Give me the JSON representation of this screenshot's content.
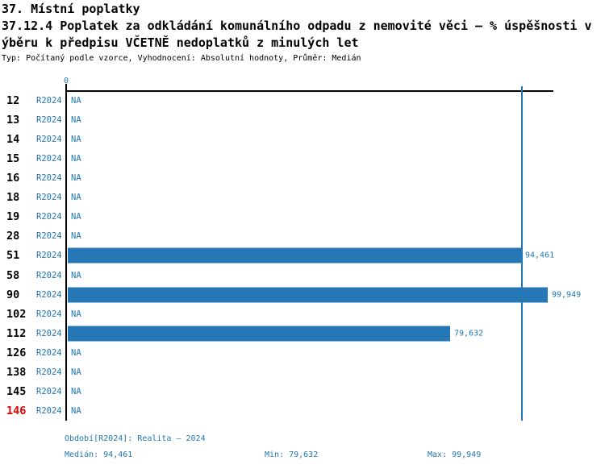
{
  "header": {
    "section_title": "37. Místní poplatky",
    "indicator_title_line1": "37.12.4 Poplatek za odkládání komunálního odpadu z nemovité věci – % úspěšnosti v",
    "indicator_title_line2": "ýběru k předpisu VČETNĚ nedoplatků z minulých let",
    "meta_line": "Typ: Počítaný podle vzorce, Vyhodnocení: Absolutní hodnoty, Průměr: Medián"
  },
  "chart_data": {
    "type": "bar",
    "orientation": "horizontal",
    "x_axis": {
      "zero_label": "0",
      "min": 0,
      "implied_max": 100
    },
    "median_line_value": 94.461,
    "na_label": "NA",
    "bar_color": "#2577b5",
    "text_color": "#1f77b4",
    "highlight_color": "#dd0000",
    "categories": [
      "12",
      "13",
      "14",
      "15",
      "16",
      "18",
      "19",
      "28",
      "51",
      "58",
      "90",
      "102",
      "112",
      "126",
      "138",
      "145",
      "146"
    ],
    "series": [
      {
        "name": "R2024",
        "values": [
          null,
          null,
          null,
          null,
          null,
          null,
          null,
          null,
          94.461,
          null,
          99.949,
          null,
          79.632,
          null,
          null,
          null,
          null
        ],
        "display_values": [
          "NA",
          "NA",
          "NA",
          "NA",
          "NA",
          "NA",
          "NA",
          "NA",
          "94,461",
          "NA",
          "99,949",
          "NA",
          "79,632",
          "NA",
          "NA",
          "NA",
          "NA"
        ]
      }
    ],
    "rows": [
      {
        "category": "12",
        "period": "R2024",
        "value": null,
        "display": "NA",
        "highlight": false
      },
      {
        "category": "13",
        "period": "R2024",
        "value": null,
        "display": "NA",
        "highlight": false
      },
      {
        "category": "14",
        "period": "R2024",
        "value": null,
        "display": "NA",
        "highlight": false
      },
      {
        "category": "15",
        "period": "R2024",
        "value": null,
        "display": "NA",
        "highlight": false
      },
      {
        "category": "16",
        "period": "R2024",
        "value": null,
        "display": "NA",
        "highlight": false
      },
      {
        "category": "18",
        "period": "R2024",
        "value": null,
        "display": "NA",
        "highlight": false
      },
      {
        "category": "19",
        "period": "R2024",
        "value": null,
        "display": "NA",
        "highlight": false
      },
      {
        "category": "28",
        "period": "R2024",
        "value": null,
        "display": "NA",
        "highlight": false
      },
      {
        "category": "51",
        "period": "R2024",
        "value": 94.461,
        "display": "94,461",
        "highlight": false
      },
      {
        "category": "58",
        "period": "R2024",
        "value": null,
        "display": "NA",
        "highlight": false
      },
      {
        "category": "90",
        "period": "R2024",
        "value": 99.949,
        "display": "99,949",
        "highlight": false
      },
      {
        "category": "102",
        "period": "R2024",
        "value": null,
        "display": "NA",
        "highlight": false
      },
      {
        "category": "112",
        "period": "R2024",
        "value": 79.632,
        "display": "79,632",
        "highlight": false
      },
      {
        "category": "126",
        "period": "R2024",
        "value": null,
        "display": "NA",
        "highlight": false
      },
      {
        "category": "138",
        "period": "R2024",
        "value": null,
        "display": "NA",
        "highlight": false
      },
      {
        "category": "145",
        "period": "R2024",
        "value": null,
        "display": "NA",
        "highlight": false
      },
      {
        "category": "146",
        "period": "R2024",
        "value": null,
        "display": "NA",
        "highlight": true
      }
    ]
  },
  "footer": {
    "period_info": "Období[R2024]: Realita – 2024",
    "median": "Medián: 94,461",
    "min": "Min: 79,632",
    "max": "Max: 99,949"
  }
}
